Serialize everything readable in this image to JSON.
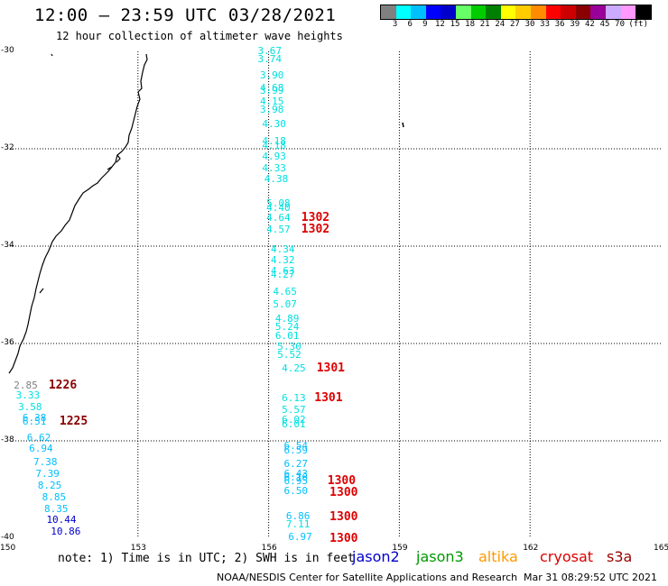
{
  "header": {
    "title": "12:00 — 23:59 UTC 03/28/2021",
    "subtitle": "12 hour collection of altimeter wave heights"
  },
  "legend": {
    "colors": [
      "#808080",
      "#00ffff",
      "#00bfff",
      "#0000ff",
      "#0000cd",
      "#66ff66",
      "#00cc00",
      "#008000",
      "#ffff00",
      "#ffcc00",
      "#ff8c00",
      "#ff0000",
      "#cc0000",
      "#8b0000",
      "#990099",
      "#ccaaff",
      "#ff99ff",
      "#000000"
    ],
    "ticks": [
      "3",
      "6",
      "9",
      "12",
      "15",
      "18",
      "21",
      "24",
      "27",
      "30",
      "33",
      "36",
      "39",
      "42",
      "45",
      "70",
      "(ft)"
    ]
  },
  "axes": {
    "lat_labels": [
      "-30",
      "-32",
      "-34",
      "-36",
      "-38",
      "-40"
    ],
    "lon_labels": [
      "150",
      "153",
      "156",
      "159",
      "162",
      "165"
    ]
  },
  "wave_heights": [
    {
      "v": "3.67",
      "c": "#00e0e0",
      "lon": 155.75,
      "lat": -29.98
    },
    {
      "v": "3.74",
      "c": "#00e0e0",
      "lon": 155.75,
      "lat": -30.14
    },
    {
      "v": "3.90",
      "c": "#00e0e0",
      "lon": 155.8,
      "lat": -30.48
    },
    {
      "v": "4.68",
      "c": "#00e0e0",
      "lon": 155.8,
      "lat": -30.74
    },
    {
      "v": "3.99",
      "c": "#00e0e0",
      "lon": 155.8,
      "lat": -30.8
    },
    {
      "v": "4.15",
      "c": "#00e0e0",
      "lon": 155.8,
      "lat": -31.02
    },
    {
      "v": "3.98",
      "c": "#00e0e0",
      "lon": 155.8,
      "lat": -31.18
    },
    {
      "v": "4.30",
      "c": "#00e0e0",
      "lon": 155.85,
      "lat": -31.48
    },
    {
      "v": "4.18",
      "c": "#00e0e0",
      "lon": 155.85,
      "lat": -31.84
    },
    {
      "v": "4.18",
      "c": "#00e0e0",
      "lon": 155.85,
      "lat": -31.92
    },
    {
      "v": "4.93",
      "c": "#00e0e0",
      "lon": 155.85,
      "lat": -32.14
    },
    {
      "v": "4.33",
      "c": "#00e0e0",
      "lon": 155.85,
      "lat": -32.38
    },
    {
      "v": "4.38",
      "c": "#00e0e0",
      "lon": 155.9,
      "lat": -32.62
    },
    {
      "v": "5.08",
      "c": "#00e0e0",
      "lon": 155.95,
      "lat": -33.12
    },
    {
      "v": "4.40",
      "c": "#00e0e0",
      "lon": 155.95,
      "lat": -33.2
    },
    {
      "v": "4.64",
      "c": "#00e0e0",
      "lon": 155.95,
      "lat": -33.4
    },
    {
      "v": "4.57",
      "c": "#00e0e0",
      "lon": 155.95,
      "lat": -33.64
    },
    {
      "v": "4.34",
      "c": "#00e0e0",
      "lon": 156.05,
      "lat": -34.06
    },
    {
      "v": "4.32",
      "c": "#00e0e0",
      "lon": 156.05,
      "lat": -34.28
    },
    {
      "v": "4.63",
      "c": "#00e0e0",
      "lon": 156.05,
      "lat": -34.5
    },
    {
      "v": "4.27",
      "c": "#00e0e0",
      "lon": 156.05,
      "lat": -34.58
    },
    {
      "v": "4.65",
      "c": "#00e0e0",
      "lon": 156.1,
      "lat": -34.92
    },
    {
      "v": "5.07",
      "c": "#00e0e0",
      "lon": 156.1,
      "lat": -35.18
    },
    {
      "v": "4.89",
      "c": "#00e0e0",
      "lon": 156.15,
      "lat": -35.48
    },
    {
      "v": "5.24",
      "c": "#00e0e0",
      "lon": 156.15,
      "lat": -35.64
    },
    {
      "v": "6.01",
      "c": "#00e0e0",
      "lon": 156.15,
      "lat": -35.84
    },
    {
      "v": "5.30",
      "c": "#00e0e0",
      "lon": 156.2,
      "lat": -36.06
    },
    {
      "v": "5.52",
      "c": "#00e0e0",
      "lon": 156.2,
      "lat": -36.22
    },
    {
      "v": "4.25",
      "c": "#00e0e0",
      "lon": 156.3,
      "lat": -36.5
    },
    {
      "v": "6.13",
      "c": "#00e0e0",
      "lon": 156.3,
      "lat": -37.12
    },
    {
      "v": "5.57",
      "c": "#00e0e0",
      "lon": 156.3,
      "lat": -37.36
    },
    {
      "v": "6.02",
      "c": "#00e0e0",
      "lon": 156.3,
      "lat": -37.56
    },
    {
      "v": "6.01",
      "c": "#00e0e0",
      "lon": 156.3,
      "lat": -37.64
    },
    {
      "v": "6.54",
      "c": "#00bfff",
      "lon": 156.35,
      "lat": -38.1
    },
    {
      "v": "6.59",
      "c": "#00bfff",
      "lon": 156.35,
      "lat": -38.18
    },
    {
      "v": "6.27",
      "c": "#00bfff",
      "lon": 156.35,
      "lat": -38.46
    },
    {
      "v": "6.43",
      "c": "#00bfff",
      "lon": 156.35,
      "lat": -38.66
    },
    {
      "v": "6.16",
      "c": "#00bfff",
      "lon": 156.35,
      "lat": -38.74
    },
    {
      "v": "6.95",
      "c": "#00bfff",
      "lon": 156.35,
      "lat": -38.82
    },
    {
      "v": "6.50",
      "c": "#00bfff",
      "lon": 156.35,
      "lat": -39.02
    },
    {
      "v": "6.86",
      "c": "#00bfff",
      "lon": 156.4,
      "lat": -39.54
    },
    {
      "v": "7.11",
      "c": "#00e0e0",
      "lon": 156.4,
      "lat": -39.7
    },
    {
      "v": "6.97",
      "c": "#00bfff",
      "lon": 156.45,
      "lat": -39.96
    },
    {
      "v": "2.85",
      "c": "#808080",
      "lon": 150.15,
      "lat": -36.86
    },
    {
      "v": "3.33",
      "c": "#00e0e0",
      "lon": 150.2,
      "lat": -37.06
    },
    {
      "v": "3.58",
      "c": "#00e0e0",
      "lon": 150.25,
      "lat": -37.3
    },
    {
      "v": "6.38",
      "c": "#00bfff",
      "lon": 150.35,
      "lat": -37.52
    },
    {
      "v": "6.51",
      "c": "#00bfff",
      "lon": 150.35,
      "lat": -37.6
    },
    {
      "v": "6.62",
      "c": "#00bfff",
      "lon": 150.45,
      "lat": -37.92
    },
    {
      "v": "6.94",
      "c": "#00bfff",
      "lon": 150.5,
      "lat": -38.14
    },
    {
      "v": "7.38",
      "c": "#00bfff",
      "lon": 150.6,
      "lat": -38.42
    },
    {
      "v": "7.39",
      "c": "#00bfff",
      "lon": 150.65,
      "lat": -38.66
    },
    {
      "v": "8.25",
      "c": "#00bfff",
      "lon": 150.7,
      "lat": -38.9
    },
    {
      "v": "8.85",
      "c": "#00bfff",
      "lon": 150.8,
      "lat": -39.14
    },
    {
      "v": "8.35",
      "c": "#00bfff",
      "lon": 150.85,
      "lat": -39.38
    },
    {
      "v": "10.44",
      "c": "#0000cd",
      "lon": 150.9,
      "lat": -39.62
    },
    {
      "v": "10.86",
      "c": "#0000cd",
      "lon": 151.0,
      "lat": -39.86
    }
  ],
  "pass_labels": [
    {
      "v": "1302",
      "c": "#dd0000",
      "lon": 156.75,
      "lat": -33.4
    },
    {
      "v": "1302",
      "c": "#dd0000",
      "lon": 156.75,
      "lat": -33.64
    },
    {
      "v": "1301",
      "c": "#dd0000",
      "lon": 157.1,
      "lat": -36.5
    },
    {
      "v": "1301",
      "c": "#dd0000",
      "lon": 157.05,
      "lat": -37.12
    },
    {
      "v": "1300",
      "c": "#dd0000",
      "lon": 157.35,
      "lat": -38.82
    },
    {
      "v": "1300",
      "c": "#dd0000",
      "lon": 157.4,
      "lat": -39.06
    },
    {
      "v": "1300",
      "c": "#dd0000",
      "lon": 157.4,
      "lat": -39.56
    },
    {
      "v": "1300",
      "c": "#dd0000",
      "lon": 157.4,
      "lat": -40.0
    },
    {
      "v": "1226",
      "c": "#8b0000",
      "lon": 150.95,
      "lat": -36.86
    },
    {
      "v": "1225",
      "c": "#8b0000",
      "lon": 151.2,
      "lat": -37.6
    }
  ],
  "footer": {
    "note": "note: 1) Time is in UTC; 2) SWH is in feet",
    "satellites": [
      {
        "name": "jason2",
        "color": "#0000cc"
      },
      {
        "name": "jason3",
        "color": "#009900"
      },
      {
        "name": "altika",
        "color": "#ff9900"
      },
      {
        "name": "cryosat",
        "color": "#dd0000"
      },
      {
        "name": "s3a",
        "color": "#990000"
      }
    ],
    "credit": "NOAA/NESDIS Center for Satellite Applications and Research",
    "timestamp": "Mar 31 08:29:52 UTC 2021"
  }
}
